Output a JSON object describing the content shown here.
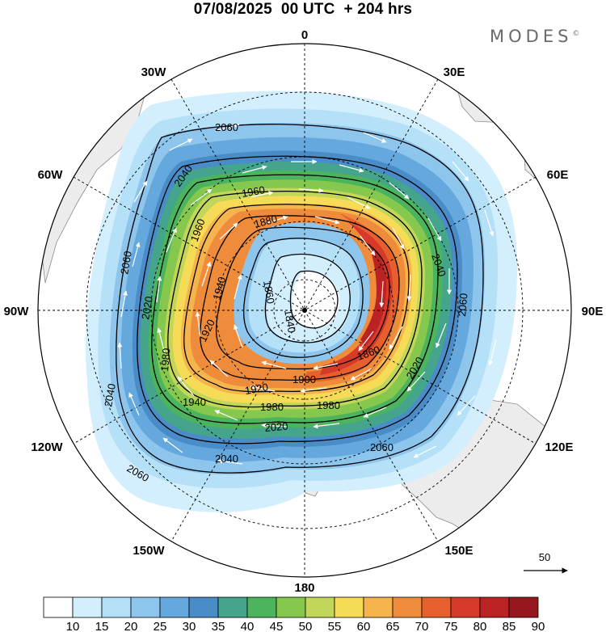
{
  "header": {
    "title": "07/08/2025  00 UTC  + 204 hrs",
    "brand": "MODES",
    "brand_mark": "©"
  },
  "map": {
    "projection": "south-polar-stereographic",
    "longitude_labels": [
      {
        "text": "0",
        "angle": 0
      },
      {
        "text": "30E",
        "angle": 30
      },
      {
        "text": "60E",
        "angle": 60
      },
      {
        "text": "90E",
        "angle": 90
      },
      {
        "text": "120E",
        "angle": 120
      },
      {
        "text": "150E",
        "angle": 150
      },
      {
        "text": "180",
        "angle": 180
      },
      {
        "text": "150W",
        "angle": 210
      },
      {
        "text": "120W",
        "angle": 240
      },
      {
        "text": "90W",
        "angle": 270
      },
      {
        "text": "60W",
        "angle": 300
      },
      {
        "text": "30W",
        "angle": 330
      }
    ],
    "contour_labels": [
      "2060",
      "2040",
      "2060",
      "2040",
      "1960",
      "1980",
      "1960",
      "1880",
      "1860",
      "1940",
      "1840",
      "2020",
      "1920",
      "1980",
      "1900",
      "1860",
      "2020",
      "2060",
      "1940",
      "1920",
      "1980",
      "2020",
      "2040",
      "2060",
      "2040",
      "2060"
    ],
    "vector_reference": {
      "value": "50"
    }
  },
  "colorbar": {
    "labels": [
      "10",
      "15",
      "20",
      "25",
      "30",
      "35",
      "40",
      "45",
      "50",
      "55",
      "60",
      "65",
      "70",
      "75",
      "80",
      "85",
      "90"
    ],
    "colors": [
      "#ffffff",
      "#d3eefc",
      "#b4e0f8",
      "#8ec5ec",
      "#64a8de",
      "#4a8cc8",
      "#44a58c",
      "#4cb45c",
      "#86c84e",
      "#c2d75a",
      "#f6dc56",
      "#f6b44c",
      "#ef8c3c",
      "#e6602e",
      "#d73a28",
      "#bb2224",
      "#96181e"
    ]
  }
}
